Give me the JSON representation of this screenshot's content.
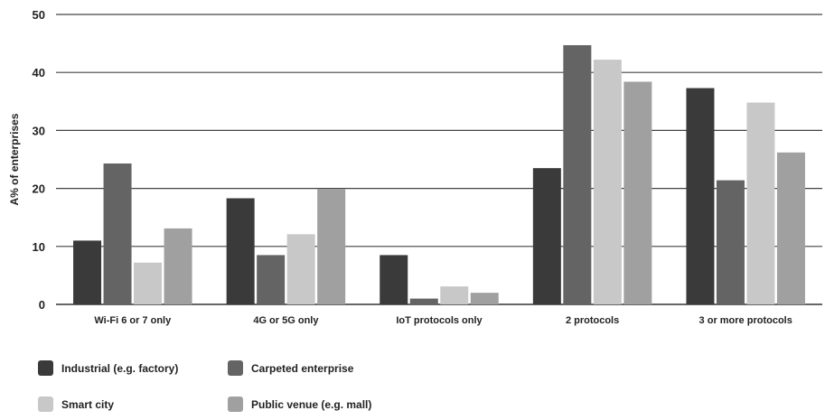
{
  "chart_data": {
    "type": "bar",
    "title": "",
    "xlabel": "",
    "ylabel": "A% of enterprises",
    "ylim": [
      0,
      50
    ],
    "yticks": [
      0,
      10,
      20,
      30,
      40,
      50
    ],
    "grid": true,
    "legend_position": "bottom",
    "categories": [
      "Wi-Fi 6 or 7 only",
      "4G or 5G only",
      "IoT protocols only",
      "2 protocols",
      "3 or more protocols"
    ],
    "series": [
      {
        "name": "Industrial (e.g. factory)",
        "color": "#3a3a3a",
        "values": [
          11.0,
          18.3,
          8.5,
          23.5,
          37.3
        ]
      },
      {
        "name": "Carpeted enterprise",
        "color": "#646464",
        "values": [
          24.3,
          8.5,
          1.0,
          44.7,
          21.4
        ]
      },
      {
        "name": "Smart city",
        "color": "#c8c8c8",
        "values": [
          7.2,
          12.1,
          3.1,
          42.2,
          34.8
        ]
      },
      {
        "name": "Public venue (e.g. mall)",
        "color": "#a0a0a0",
        "values": [
          13.1,
          19.9,
          2.0,
          38.4,
          26.2
        ]
      }
    ]
  }
}
